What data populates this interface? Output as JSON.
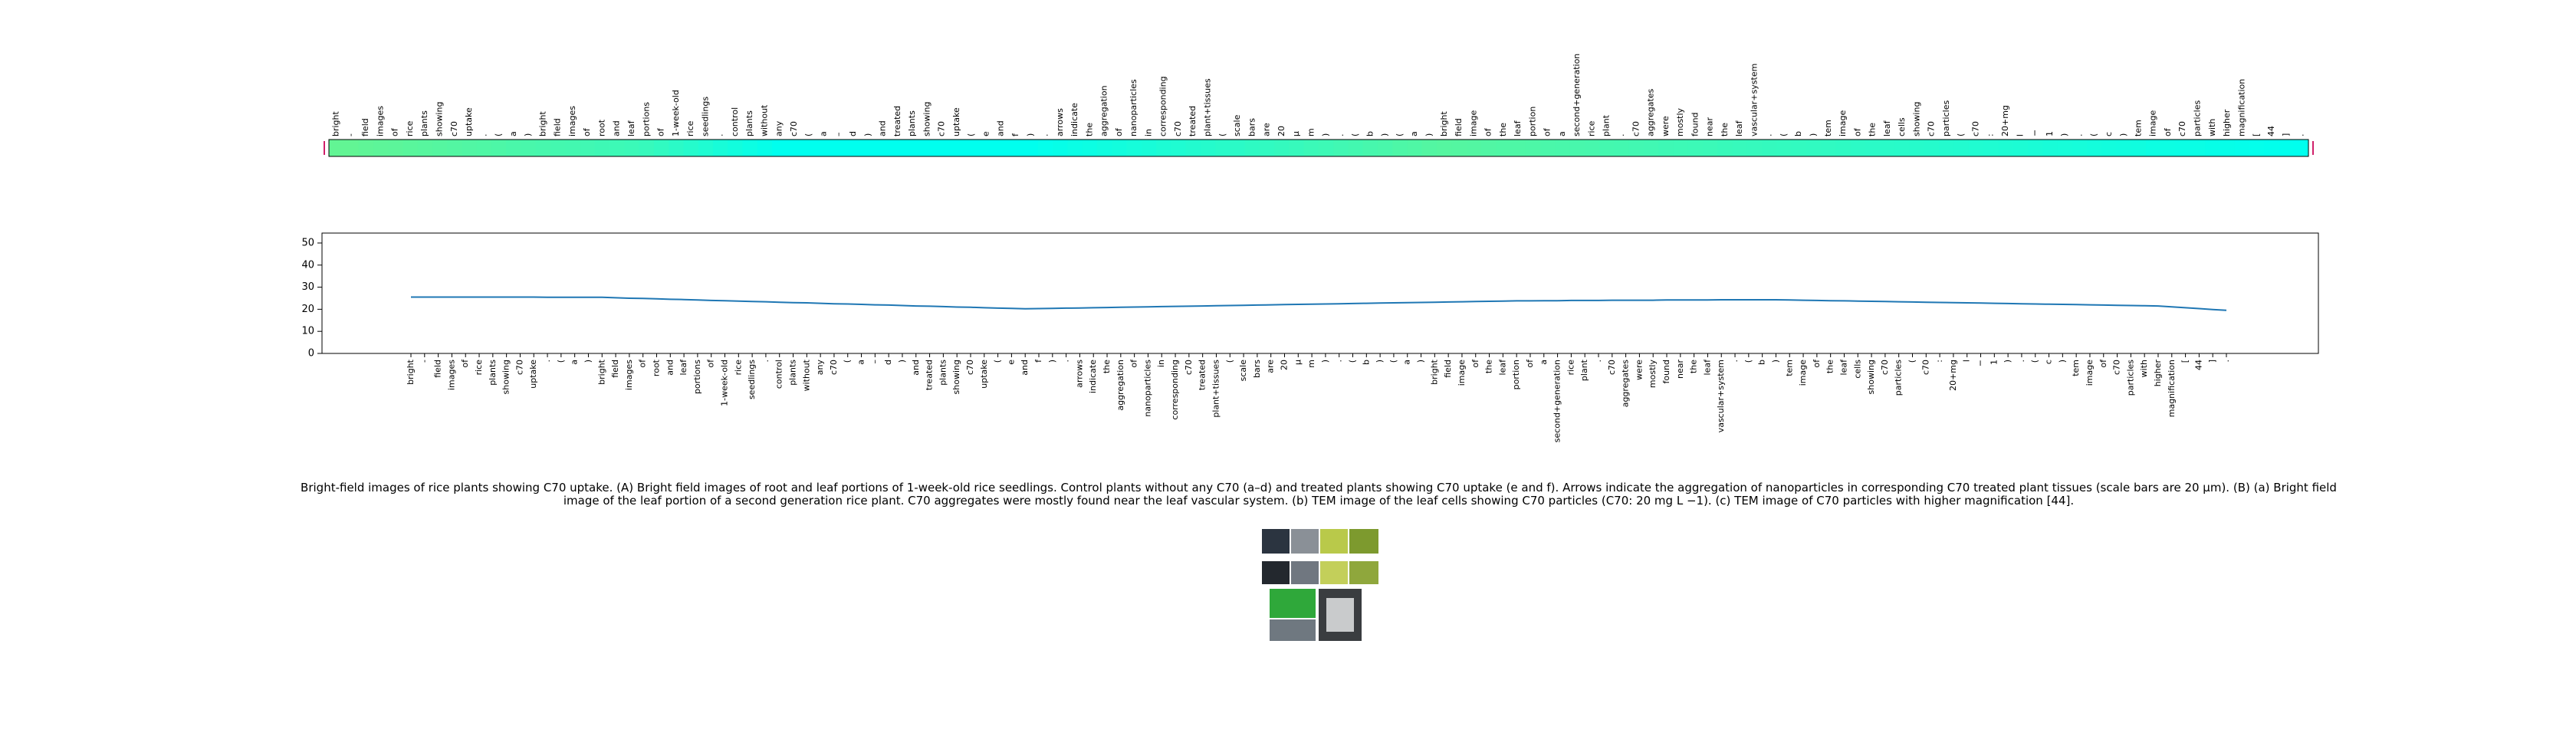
{
  "chart_data": [
    {
      "type": "heatmap",
      "categories": [
        "bright",
        "-",
        "field",
        "images",
        "of",
        "rice",
        "plants",
        "showing",
        "c70",
        "uptake",
        ".",
        "(",
        "a",
        ")",
        "bright",
        "field",
        "images",
        "of",
        "root",
        "and",
        "leaf",
        "portions",
        "of",
        "1-week-old",
        "rice",
        "seedlings",
        ".",
        "control",
        "plants",
        "without",
        "any",
        "c70",
        "(",
        "a",
        "–",
        "d",
        ")",
        "and",
        "treated",
        "plants",
        "showing",
        "c70",
        "uptake",
        "(",
        "e",
        "and",
        "f",
        ")",
        ".",
        "arrows",
        "indicate",
        "the",
        "aggregation",
        "of",
        "nanoparticles",
        "in",
        "corresponding",
        "c70",
        "treated",
        "plant+tissues",
        "(",
        "scale",
        "bars",
        "are",
        "20",
        "μ",
        "m",
        ")",
        ".",
        "(",
        "b",
        ")",
        "(",
        "a",
        ")",
        "bright",
        "field",
        "image",
        "of",
        "the",
        "leaf",
        "portion",
        "of",
        "a",
        "second+generation",
        "rice",
        "plant",
        ".",
        "c70",
        "aggregates",
        "were",
        "mostly",
        "found",
        "near",
        "the",
        "leaf",
        "vascular+system",
        ".",
        "(",
        "b",
        ")",
        "tem",
        "image",
        "of",
        "the",
        "leaf",
        "cells",
        "showing",
        "c70",
        "particles",
        "(",
        "c70",
        ":",
        "20+mg",
        "l",
        "−",
        "1",
        ")",
        ".",
        "(",
        "c",
        ")",
        "tem",
        "image",
        "of",
        "c70",
        "particles",
        "with",
        "higher",
        "magnification",
        "[",
        "44",
        "]",
        "."
      ],
      "values": [
        0.2,
        0.2,
        0.22,
        0.24,
        0.25,
        0.27,
        0.29,
        0.3,
        0.32,
        0.34,
        0.35,
        0.37,
        0.39,
        0.4,
        0.42,
        0.44,
        0.45,
        0.47,
        0.49,
        0.5,
        0.52,
        0.55,
        0.6,
        0.65,
        0.7,
        0.75,
        0.8,
        0.85,
        0.9,
        0.95,
        1.0,
        1.0,
        1.0,
        1.0,
        1.0,
        1.0,
        1.0,
        1.0,
        1.0,
        1.0,
        1.0,
        1.0,
        1.0,
        1.0,
        1.0,
        1.0,
        1.0,
        1.0,
        0.97,
        0.95,
        0.92,
        0.9,
        0.87,
        0.85,
        0.82,
        0.8,
        0.77,
        0.75,
        0.72,
        0.7,
        0.67,
        0.65,
        0.62,
        0.6,
        0.57,
        0.55,
        0.52,
        0.5,
        0.47,
        0.45,
        0.42,
        0.4,
        0.37,
        0.35,
        0.32,
        0.3,
        0.31,
        0.32,
        0.34,
        0.35,
        0.36,
        0.37,
        0.39,
        0.4,
        0.41,
        0.42,
        0.44,
        0.45,
        0.46,
        0.47,
        0.49,
        0.5,
        0.51,
        0.52,
        0.54,
        0.55,
        0.56,
        0.57,
        0.58,
        0.59,
        0.6,
        0.61,
        0.62,
        0.64,
        0.65,
        0.66,
        0.67,
        0.69,
        0.7,
        0.71,
        0.72,
        0.74,
        0.75,
        0.76,
        0.77,
        0.79,
        0.8,
        0.81,
        0.82,
        0.84,
        0.85,
        0.86,
        0.87,
        0.89,
        0.9,
        0.91,
        0.92,
        0.94,
        0.95,
        0.96,
        0.97,
        0.98,
        0.99,
        1.0
      ],
      "colormap": [
        "#7af27e",
        "#00ffee"
      ]
    },
    {
      "type": "line",
      "categories": [
        "bright",
        "-",
        "field",
        "images",
        "of",
        "rice",
        "plants",
        "showing",
        "c70",
        "uptake",
        ".",
        "(",
        "a",
        ")",
        "bright",
        "field",
        "images",
        "of",
        "root",
        "and",
        "leaf",
        "portions",
        "of",
        "1-week-old",
        "rice",
        "seedlings",
        ".",
        "control",
        "plants",
        "without",
        "any",
        "c70",
        "(",
        "a",
        "–",
        "d",
        ")",
        "and",
        "treated",
        "plants",
        "showing",
        "c70",
        "uptake",
        "(",
        "e",
        "and",
        "f",
        ")",
        ".",
        "arrows",
        "indicate",
        "the",
        "aggregation",
        "of",
        "nanoparticles",
        "in",
        "corresponding",
        "c70",
        "treated",
        "plant+tissues",
        "(",
        "scale",
        "bars",
        "are",
        "20",
        "μ",
        "m",
        ")",
        ".",
        "(",
        "b",
        ")",
        "(",
        "a",
        ")",
        "bright",
        "field",
        "image",
        "of",
        "the",
        "leaf",
        "portion",
        "of",
        "a",
        "second+generation",
        "rice",
        "plant",
        ".",
        "c70",
        "aggregates",
        "were",
        "mostly",
        "found",
        "near",
        "the",
        "leaf",
        "vascular+system",
        ".",
        "(",
        "b",
        ")",
        "tem",
        "image",
        "of",
        "the",
        "leaf",
        "cells",
        "showing",
        "c70",
        "particles",
        "(",
        "c70",
        ":",
        "20+mg",
        "l",
        "−",
        "1",
        ")",
        ".",
        "(",
        "c",
        ")",
        "tem",
        "image",
        "of",
        "c70",
        "particles",
        "with",
        "higher",
        "magnification",
        "[",
        "44",
        "]",
        "."
      ],
      "values": [
        25.5,
        25.5,
        25.5,
        25.5,
        25.5,
        25.5,
        25.5,
        25.5,
        25.5,
        25.5,
        25.4,
        25.4,
        25.4,
        25.4,
        25.4,
        25.2,
        25.0,
        24.9,
        24.7,
        24.5,
        24.4,
        24.2,
        24.0,
        23.9,
        23.7,
        23.5,
        23.4,
        23.2,
        23.0,
        22.9,
        22.7,
        22.5,
        22.4,
        22.2,
        22.0,
        21.9,
        21.7,
        21.5,
        21.4,
        21.2,
        21.0,
        20.9,
        20.7,
        20.5,
        20.4,
        20.2,
        20.3,
        20.4,
        20.5,
        20.6,
        20.7,
        20.8,
        20.9,
        21.0,
        21.1,
        21.2,
        21.3,
        21.4,
        21.5,
        21.6,
        21.7,
        21.8,
        21.9,
        22.0,
        22.1,
        22.2,
        22.3,
        22.4,
        22.5,
        22.6,
        22.7,
        22.8,
        22.9,
        23.0,
        23.1,
        23.2,
        23.3,
        23.4,
        23.5,
        23.6,
        23.7,
        23.8,
        23.8,
        23.9,
        23.9,
        24.0,
        24.0,
        24.0,
        24.1,
        24.1,
        24.1,
        24.1,
        24.2,
        24.2,
        24.2,
        24.2,
        24.3,
        24.3,
        24.3,
        24.3,
        24.3,
        24.2,
        24.1,
        24.0,
        23.9,
        23.8,
        23.7,
        23.6,
        23.5,
        23.4,
        23.3,
        23.2,
        23.1,
        23.0,
        22.9,
        22.8,
        22.7,
        22.6,
        22.5,
        22.4,
        22.3,
        22.2,
        22.1,
        22.0,
        21.9,
        21.8,
        21.7,
        21.6,
        21.5,
        21.1,
        20.7,
        20.3,
        19.9,
        19.5
      ],
      "color": "#1f77b4",
      "ylim": [
        0,
        54.5
      ],
      "yticks": [
        0,
        10,
        20,
        30,
        40,
        50
      ]
    }
  ],
  "caption": "Bright-field images of rice plants showing C70 uptake. (A) Bright field images of root and leaf portions of 1-week-old rice seedlings. Control plants without any C70 (a–d) and treated plants showing C70 uptake (e and f). Arrows indicate the aggregation of nanoparticles in corresponding C70 treated plant tissues (scale bars are 20 μm). (B) (a) Bright field image of the leaf portion of a second generation rice plant. C70 aggregates were mostly found near the leaf vascular system. (b) TEM image of the leaf cells showing C70 particles (C70: 20 mg L −1). (c) TEM image of C70 particles with higher magnification [44]."
}
